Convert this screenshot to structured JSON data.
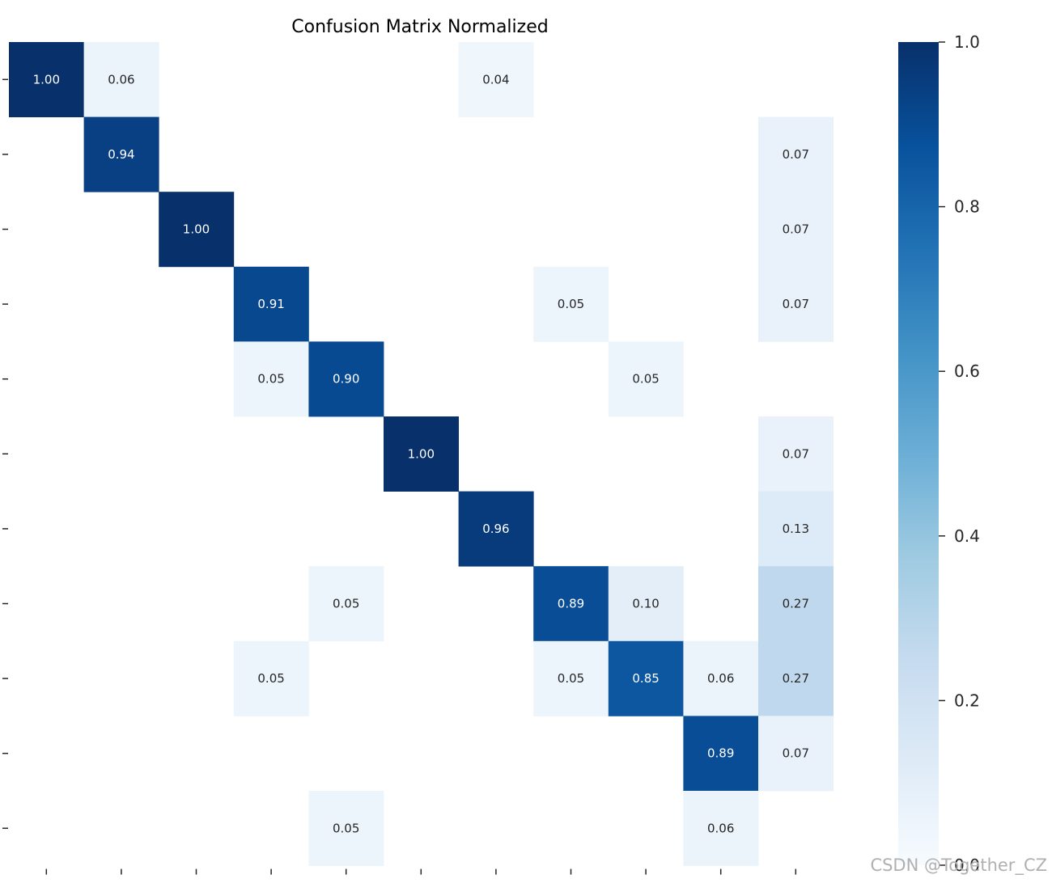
{
  "chart_data": {
    "type": "heatmap",
    "title": "Confusion Matrix Normalized",
    "colormap": "Blues",
    "vmin": 0.0,
    "vmax": 1.0,
    "colorbar_ticks": [
      "0.0",
      "0.2",
      "0.4",
      "0.6",
      "0.8",
      "1.0"
    ],
    "colorbar_tick_values": [
      0.0,
      0.2,
      0.4,
      0.6,
      0.8,
      1.0
    ],
    "rows": 11,
    "cols": 11,
    "matrix": [
      [
        1.0,
        0.06,
        0.0,
        0.0,
        0.0,
        0.0,
        0.04,
        0.0,
        0.0,
        0.0,
        0.0
      ],
      [
        0.0,
        0.94,
        0.0,
        0.0,
        0.0,
        0.0,
        0.0,
        0.0,
        0.0,
        0.0,
        0.07
      ],
      [
        0.0,
        0.0,
        1.0,
        0.0,
        0.0,
        0.0,
        0.0,
        0.0,
        0.0,
        0.0,
        0.07
      ],
      [
        0.0,
        0.0,
        0.0,
        0.91,
        0.0,
        0.0,
        0.0,
        0.05,
        0.0,
        0.0,
        0.07
      ],
      [
        0.0,
        0.0,
        0.0,
        0.05,
        0.9,
        0.0,
        0.0,
        0.0,
        0.05,
        0.0,
        0.0
      ],
      [
        0.0,
        0.0,
        0.0,
        0.0,
        0.0,
        1.0,
        0.0,
        0.0,
        0.0,
        0.0,
        0.07
      ],
      [
        0.0,
        0.0,
        0.0,
        0.0,
        0.0,
        0.0,
        0.96,
        0.0,
        0.0,
        0.0,
        0.13
      ],
      [
        0.0,
        0.0,
        0.0,
        0.0,
        0.05,
        0.0,
        0.0,
        0.89,
        0.1,
        0.0,
        0.27
      ],
      [
        0.0,
        0.0,
        0.0,
        0.05,
        0.0,
        0.0,
        0.0,
        0.05,
        0.85,
        0.06,
        0.27
      ],
      [
        0.0,
        0.0,
        0.0,
        0.0,
        0.0,
        0.0,
        0.0,
        0.0,
        0.0,
        0.89,
        0.07
      ],
      [
        0.0,
        0.0,
        0.0,
        0.0,
        0.05,
        0.0,
        0.0,
        0.0,
        0.0,
        0.06,
        0.0
      ]
    ],
    "hide_below": 0.005,
    "value_format": "2 decimals"
  },
  "watermark": "CSDN @Together_CZ"
}
